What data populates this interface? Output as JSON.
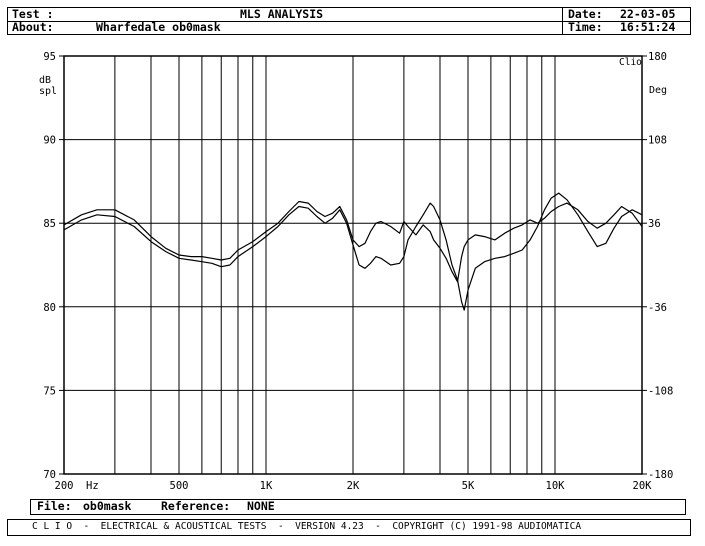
{
  "header": {
    "test_label": "Test :",
    "about_label": "About:",
    "about_value": "Wharfedale ob0mask",
    "title": "MLS ANALYSIS",
    "date_label": "Date:",
    "date_value": "22-03-05",
    "time_label": "Time:",
    "time_value": "16:51:24"
  },
  "footer": {
    "file_label": "File:",
    "file_value": "ob0mask",
    "reference_label": "Reference:",
    "reference_value": "NONE"
  },
  "bottom_bar": {
    "text": "C L I O  -  ELECTRICAL & ACOUSTICAL TESTS  -  VERSION 4.23  -  COPYRIGHT (C) 1991-98 AUDIOMATICA"
  },
  "chart_data": {
    "type": "line",
    "corner_label": "Clio",
    "left_axis_unit": [
      "dB",
      "spl"
    ],
    "right_axis_unit": "Deg",
    "x_unit": "Hz",
    "x_scale": "log",
    "xlim": [
      200,
      20000
    ],
    "ylim": [
      70,
      95
    ],
    "y2lim": [
      -180,
      180
    ],
    "grid": true,
    "x_ticks": [
      {
        "value": 200,
        "label": "200"
      },
      {
        "value": 500,
        "label": "500"
      },
      {
        "value": 1000,
        "label": "1K"
      },
      {
        "value": 2000,
        "label": "2K"
      },
      {
        "value": 5000,
        "label": "5K"
      },
      {
        "value": 10000,
        "label": "10K"
      },
      {
        "value": 20000,
        "label": "20K"
      }
    ],
    "x_gridlines": [
      300,
      400,
      500,
      600,
      700,
      800,
      900,
      1000,
      2000,
      3000,
      4000,
      5000,
      6000,
      7000,
      8000,
      9000,
      10000
    ],
    "y_ticks": [
      {
        "value": 95,
        "label": "95"
      },
      {
        "value": 90,
        "label": "90"
      },
      {
        "value": 85,
        "label": "85"
      },
      {
        "value": 80,
        "label": "80"
      },
      {
        "value": 75,
        "label": "75"
      },
      {
        "value": 70,
        "label": "70"
      }
    ],
    "y2_ticks": [
      {
        "value": 180,
        "label": "180"
      },
      {
        "value": 108,
        "label": "108"
      },
      {
        "value": 36,
        "label": "36"
      },
      {
        "value": -36,
        "label": "-36"
      },
      {
        "value": -108,
        "label": "-108"
      },
      {
        "value": -180,
        "label": "-180"
      }
    ],
    "series": [
      {
        "points": [
          [
            200,
            84.6
          ],
          [
            230,
            85.2
          ],
          [
            260,
            85.5
          ],
          [
            300,
            85.4
          ],
          [
            350,
            84.8
          ],
          [
            400,
            83.9
          ],
          [
            450,
            83.3
          ],
          [
            500,
            82.9
          ],
          [
            550,
            82.8
          ],
          [
            600,
            82.7
          ],
          [
            650,
            82.6
          ],
          [
            700,
            82.4
          ],
          [
            750,
            82.5
          ],
          [
            800,
            83.0
          ],
          [
            900,
            83.6
          ],
          [
            1000,
            84.2
          ],
          [
            1100,
            84.8
          ],
          [
            1200,
            85.5
          ],
          [
            1300,
            86.0
          ],
          [
            1400,
            85.9
          ],
          [
            1500,
            85.4
          ],
          [
            1600,
            85.0
          ],
          [
            1700,
            85.3
          ],
          [
            1800,
            85.8
          ],
          [
            1900,
            85.0
          ],
          [
            2000,
            83.7
          ],
          [
            2100,
            82.5
          ],
          [
            2200,
            82.3
          ],
          [
            2300,
            82.6
          ],
          [
            2400,
            83.0
          ],
          [
            2500,
            82.9
          ],
          [
            2700,
            82.5
          ],
          [
            2900,
            82.6
          ],
          [
            3000,
            83.0
          ],
          [
            3100,
            84.0
          ],
          [
            3300,
            84.8
          ],
          [
            3500,
            85.5
          ],
          [
            3700,
            86.2
          ],
          [
            3800,
            86.0
          ],
          [
            4000,
            85.2
          ],
          [
            4200,
            84.0
          ],
          [
            4400,
            82.5
          ],
          [
            4600,
            81.6
          ],
          [
            4750,
            80.3
          ],
          [
            4850,
            79.8
          ],
          [
            5000,
            81.0
          ],
          [
            5300,
            82.3
          ],
          [
            5700,
            82.7
          ],
          [
            6200,
            82.9
          ],
          [
            6700,
            83.0
          ],
          [
            7200,
            83.2
          ],
          [
            7700,
            83.4
          ],
          [
            8200,
            84.0
          ],
          [
            8700,
            84.8
          ],
          [
            9200,
            85.8
          ],
          [
            9700,
            86.5
          ],
          [
            10300,
            86.8
          ],
          [
            11000,
            86.4
          ],
          [
            12000,
            85.5
          ],
          [
            13000,
            84.5
          ],
          [
            14000,
            83.6
          ],
          [
            15000,
            83.8
          ],
          [
            16000,
            84.7
          ],
          [
            17000,
            85.4
          ],
          [
            18500,
            85.8
          ],
          [
            20000,
            85.5
          ]
        ]
      },
      {
        "points": [
          [
            200,
            84.9
          ],
          [
            230,
            85.5
          ],
          [
            260,
            85.8
          ],
          [
            300,
            85.8
          ],
          [
            350,
            85.2
          ],
          [
            400,
            84.2
          ],
          [
            450,
            83.5
          ],
          [
            500,
            83.1
          ],
          [
            550,
            83.0
          ],
          [
            600,
            83.0
          ],
          [
            650,
            82.9
          ],
          [
            700,
            82.8
          ],
          [
            750,
            82.9
          ],
          [
            800,
            83.4
          ],
          [
            900,
            83.9
          ],
          [
            1000,
            84.5
          ],
          [
            1100,
            85.0
          ],
          [
            1200,
            85.7
          ],
          [
            1300,
            86.3
          ],
          [
            1400,
            86.2
          ],
          [
            1500,
            85.7
          ],
          [
            1600,
            85.4
          ],
          [
            1700,
            85.6
          ],
          [
            1800,
            86.0
          ],
          [
            1900,
            85.2
          ],
          [
            2000,
            84.0
          ],
          [
            2100,
            83.6
          ],
          [
            2200,
            83.8
          ],
          [
            2300,
            84.5
          ],
          [
            2400,
            85.0
          ],
          [
            2500,
            85.1
          ],
          [
            2700,
            84.8
          ],
          [
            2900,
            84.4
          ],
          [
            3000,
            85.1
          ],
          [
            3100,
            84.8
          ],
          [
            3300,
            84.3
          ],
          [
            3500,
            84.9
          ],
          [
            3700,
            84.5
          ],
          [
            3800,
            84.0
          ],
          [
            4000,
            83.5
          ],
          [
            4200,
            82.9
          ],
          [
            4400,
            82.1
          ],
          [
            4600,
            81.5
          ],
          [
            4750,
            83.0
          ],
          [
            4850,
            83.6
          ],
          [
            5000,
            84.0
          ],
          [
            5300,
            84.3
          ],
          [
            5700,
            84.2
          ],
          [
            6200,
            84.0
          ],
          [
            6700,
            84.4
          ],
          [
            7200,
            84.7
          ],
          [
            7700,
            84.9
          ],
          [
            8200,
            85.2
          ],
          [
            8700,
            85.0
          ],
          [
            9200,
            85.3
          ],
          [
            9700,
            85.7
          ],
          [
            10300,
            86.0
          ],
          [
            11000,
            86.2
          ],
          [
            12000,
            85.8
          ],
          [
            13000,
            85.1
          ],
          [
            14000,
            84.7
          ],
          [
            15000,
            85.0
          ],
          [
            16000,
            85.5
          ],
          [
            17000,
            86.0
          ],
          [
            18500,
            85.6
          ],
          [
            20000,
            84.8
          ]
        ]
      }
    ]
  }
}
